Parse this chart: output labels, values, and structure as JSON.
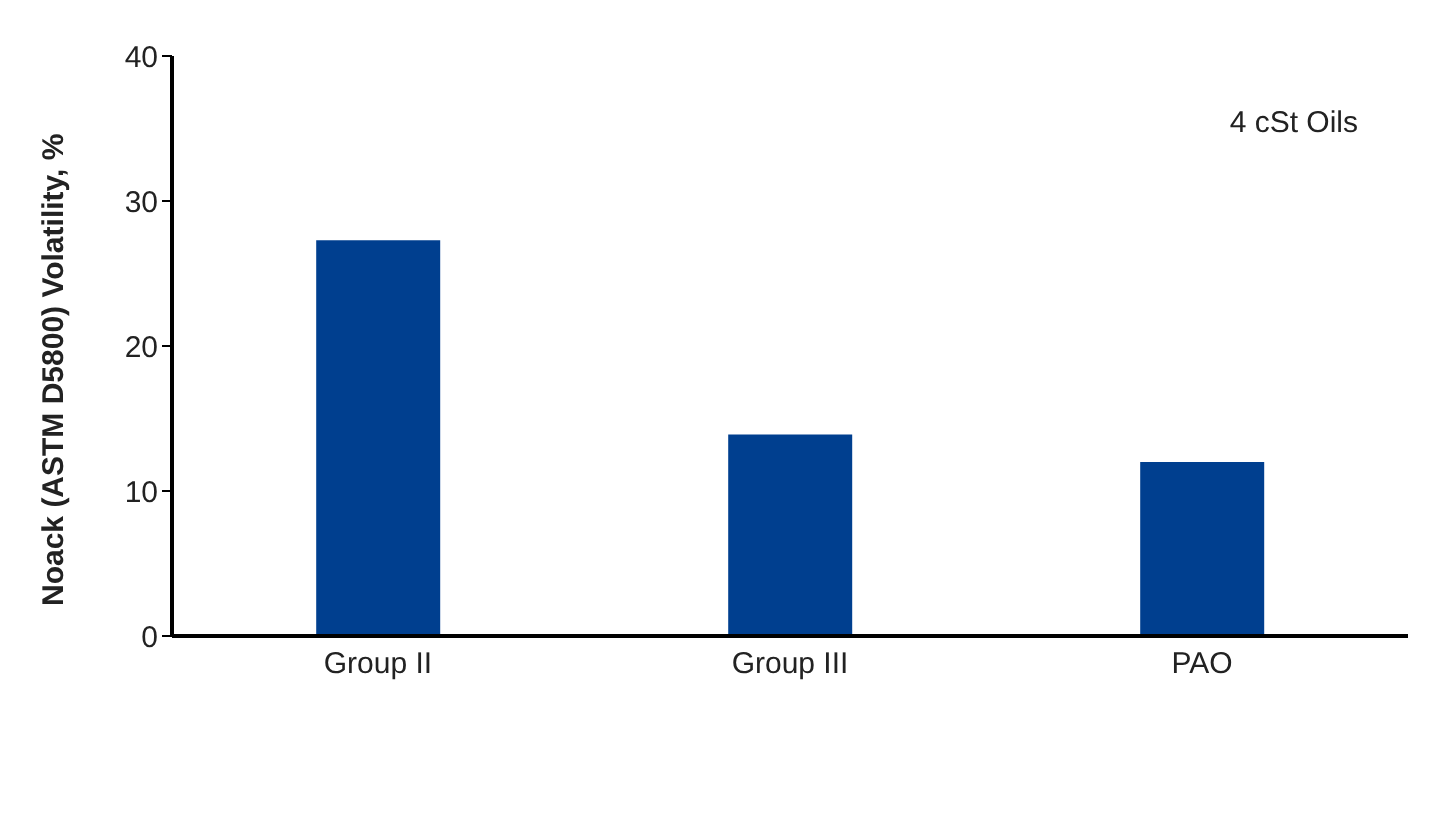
{
  "chart_data": {
    "type": "bar",
    "ylabel": "Noack (ASTM D5800) Volatility, %",
    "annotations": [
      "4 cSt Oils"
    ],
    "categories": [
      "Group II",
      "Group III",
      "PAO"
    ],
    "values": [
      27.3,
      13.9,
      12.0
    ],
    "color": "#003f8f",
    "ylim": [
      0,
      40
    ],
    "yticks": [
      0,
      10,
      20,
      30,
      40
    ],
    "grid": false,
    "legend": false
  }
}
